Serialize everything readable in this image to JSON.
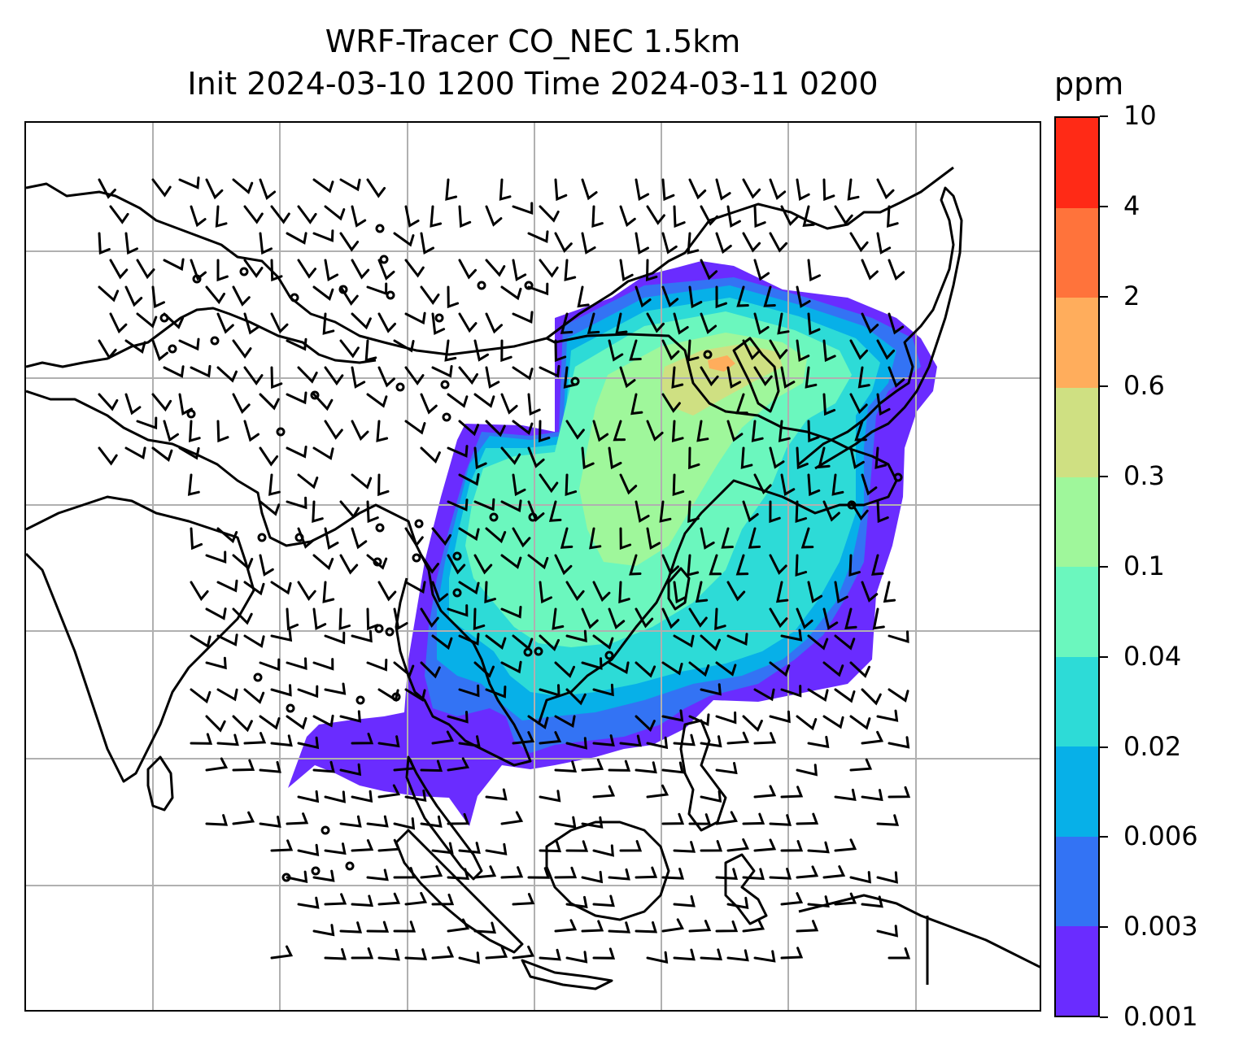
{
  "title": {
    "line1": "WRF-Tracer CO_NEC 1.5km",
    "line2": "Init 2024-03-10 1200 Time 2024-03-11 0200"
  },
  "colorbar": {
    "unit": "ppm",
    "levels": [
      "0.001",
      "0.003",
      "0.006",
      "0.02",
      "0.04",
      "0.1",
      "0.3",
      "0.6",
      "2",
      "4",
      "10"
    ],
    "colors": [
      "#6a2cff",
      "#3373f4",
      "#07b0e8",
      "#2ddbd7",
      "#6bf7be",
      "#9ff79b",
      "#cfe082",
      "#ffad5c",
      "#ff733b",
      "#ff2a16"
    ]
  },
  "map": {
    "gridlines": true,
    "coastline_color": "#000000",
    "plume_levels_shown": [
      "0.001",
      "0.003",
      "0.006",
      "0.02",
      "0.04",
      "0.1",
      "0.3",
      "0.6"
    ]
  }
}
